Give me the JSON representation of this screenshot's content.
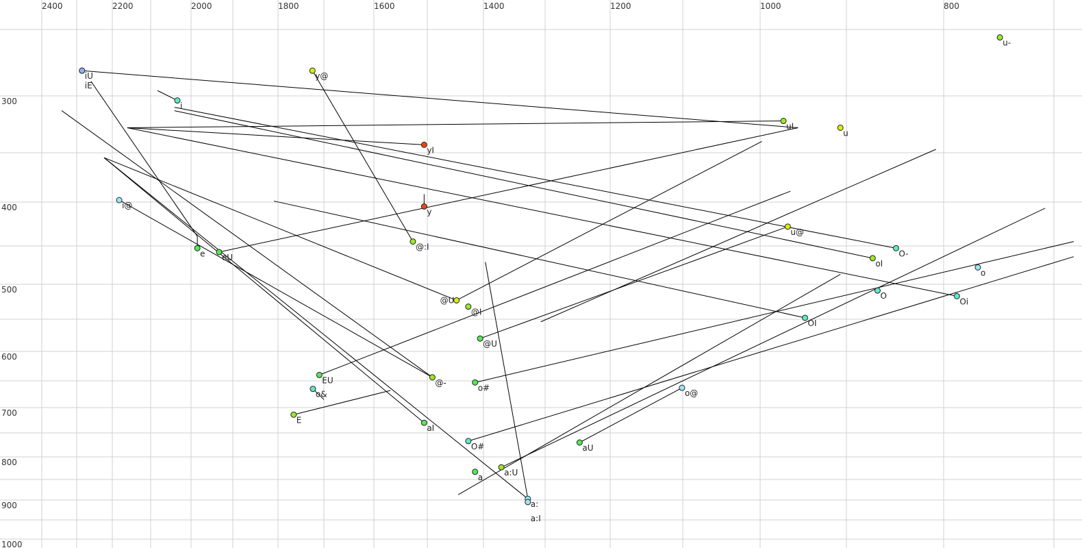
{
  "chart_data": {
    "type": "scatter",
    "title": "",
    "xlabel": "",
    "ylabel": "",
    "x_axis": {
      "reversed": true,
      "position": "top",
      "scale": "nonlinear (auditory)",
      "range": [
        2400,
        680
      ],
      "tick_labels": [
        "2400",
        "2200",
        "2000",
        "1800",
        "1600",
        "1400",
        "1200",
        "1000",
        "800"
      ],
      "grid_values": [
        2400,
        2300,
        2200,
        2100,
        2000,
        1900,
        1800,
        1700,
        1600,
        1500,
        1400,
        1300,
        1200,
        1100,
        1000,
        900,
        800,
        700
      ]
    },
    "y_axis": {
      "reversed": true,
      "position": "left",
      "scale": "nonlinear (auditory)",
      "range": [
        220,
        1000
      ],
      "tick_labels": [
        "300",
        "400",
        "500",
        "600",
        "700",
        "800",
        "900",
        "1000"
      ],
      "grid_values": [
        250,
        300,
        350,
        400,
        450,
        500,
        550,
        600,
        650,
        700,
        750,
        800,
        850,
        900,
        950,
        1000
      ]
    },
    "grid": true,
    "colors": {
      "blue": "#8ab4f8",
      "lightcyan": "#9be8f5",
      "cyan": "#5fe8c8",
      "green": "#55e855",
      "yellowgreen": "#9ae82a",
      "yellow": "#d8ee10",
      "red": "#e84a14",
      "grid": "#d0d0d0",
      "line": "#000000"
    },
    "points": [
      {
        "label": "iU",
        "x": 2285,
        "y": 281,
        "color": "blue"
      },
      {
        "label": "iE",
        "x": 2285,
        "y": 281,
        "color": "blue"
      },
      {
        "label": "y@",
        "x": 1725,
        "y": 281,
        "color": "yellow"
      },
      {
        "label": "i",
        "x": 2034,
        "y": 304,
        "color": "cyan"
      },
      {
        "label": "yI",
        "x": 1506,
        "y": 343,
        "color": "red"
      },
      {
        "label": "y",
        "x": 1506,
        "y": 405,
        "color": "red"
      },
      {
        "label": "@:I",
        "x": 1527,
        "y": 445,
        "color": "yellowgreen"
      },
      {
        "label": "e",
        "x": 1985,
        "y": 453,
        "color": "green"
      },
      {
        "label": "eU",
        "x": 1933,
        "y": 458,
        "color": "green"
      },
      {
        "label": "i@",
        "x": 2182,
        "y": 398,
        "color": "lightcyan"
      },
      {
        "label": "u-",
        "x": 749,
        "y": 256,
        "color": "yellowgreen"
      },
      {
        "label": "uI",
        "x": 973,
        "y": 322,
        "color": "yellowgreen"
      },
      {
        "label": "u",
        "x": 907,
        "y": 328,
        "color": "yellow"
      },
      {
        "label": "u@",
        "x": 968,
        "y": 428,
        "color": "yellow"
      },
      {
        "label": "O-",
        "x": 849,
        "y": 453,
        "color": "cyan"
      },
      {
        "label": "oI",
        "x": 873,
        "y": 466,
        "color": "yellowgreen"
      },
      {
        "label": "o",
        "x": 769,
        "y": 478,
        "color": "lightcyan"
      },
      {
        "label": "O",
        "x": 868,
        "y": 509,
        "color": "cyan"
      },
      {
        "label": "Oi",
        "x": 788,
        "y": 517,
        "color": "cyan"
      },
      {
        "label": "OI",
        "x": 948,
        "y": 548,
        "color": "cyan"
      },
      {
        "label": "@U",
        "x": 1448,
        "y": 523,
        "color": "yellow"
      },
      {
        "label": "@I",
        "x": 1427,
        "y": 532,
        "color": "yellowgreen"
      },
      {
        "label": "@U",
        "x": 1406,
        "y": 580,
        "color": "green"
      },
      {
        "label": "EU",
        "x": 1710,
        "y": 640,
        "color": "green"
      },
      {
        "label": "o&",
        "x": 1724,
        "y": 665,
        "color": "cyan"
      },
      {
        "label": "@-",
        "x": 1491,
        "y": 644,
        "color": "yellowgreen"
      },
      {
        "label": "o#",
        "x": 1415,
        "y": 653,
        "color": "green"
      },
      {
        "label": "E",
        "x": 1766,
        "y": 714,
        "color": "yellowgreen"
      },
      {
        "label": "aI",
        "x": 1506,
        "y": 730,
        "color": "green"
      },
      {
        "label": "O#",
        "x": 1427,
        "y": 767,
        "color": "cyan"
      },
      {
        "label": "aU",
        "x": 1247,
        "y": 770,
        "color": "green"
      },
      {
        "label": "o@",
        "x": 1101,
        "y": 663,
        "color": "lightcyan"
      },
      {
        "label": "a:U",
        "x": 1371,
        "y": 823,
        "color": "yellowgreen"
      },
      {
        "label": "a",
        "x": 1415,
        "y": 833,
        "color": "green"
      },
      {
        "label": "a:",
        "x": 1328,
        "y": 897,
        "color": "lightcyan"
      },
      {
        "label": "a:I",
        "x": 1328,
        "y": 905,
        "color": "lightcyan"
      }
    ],
    "trajectories": [
      [
        2285,
        281,
        956,
        328
      ],
      [
        2260,
        289,
        1985,
        439
      ],
      [
        1985,
        439,
        1985,
        453
      ],
      [
        1725,
        281,
        1527,
        445
      ],
      [
        2034,
        304,
        2083,
        296
      ],
      [
        2041,
        310,
        849,
        453
      ],
      [
        2041,
        313,
        873,
        466
      ],
      [
        2161,
        328,
        973,
        322
      ],
      [
        2161,
        328,
        1506,
        343
      ],
      [
        2161,
        328,
        788,
        517
      ],
      [
        1933,
        458,
        956,
        328
      ],
      [
        1506,
        392,
        1506,
        405
      ],
      [
        2343,
        313,
        1491,
        644
      ],
      [
        2223,
        355,
        1506,
        730
      ],
      [
        2223,
        355,
        1328,
        897
      ],
      [
        2223,
        355,
        1448,
        523
      ],
      [
        2182,
        398,
        1491,
        644
      ],
      [
        1809,
        399,
        948,
        548
      ],
      [
        1448,
        523,
        998,
        340
      ],
      [
        1710,
        640,
        965,
        389
      ],
      [
        1406,
        580,
        968,
        428
      ],
      [
        1307,
        554,
        808,
        347
      ],
      [
        1415,
        653,
        682,
        445
      ],
      [
        1427,
        767,
        682,
        464
      ],
      [
        1445,
        887,
        907,
        487
      ],
      [
        1371,
        823,
        708,
        407
      ],
      [
        1247,
        770,
        1101,
        663
      ],
      [
        1766,
        714,
        1569,
        668
      ],
      [
        1724,
        665,
        1700,
        685
      ],
      [
        1397,
        471,
        1328,
        897
      ]
    ]
  }
}
